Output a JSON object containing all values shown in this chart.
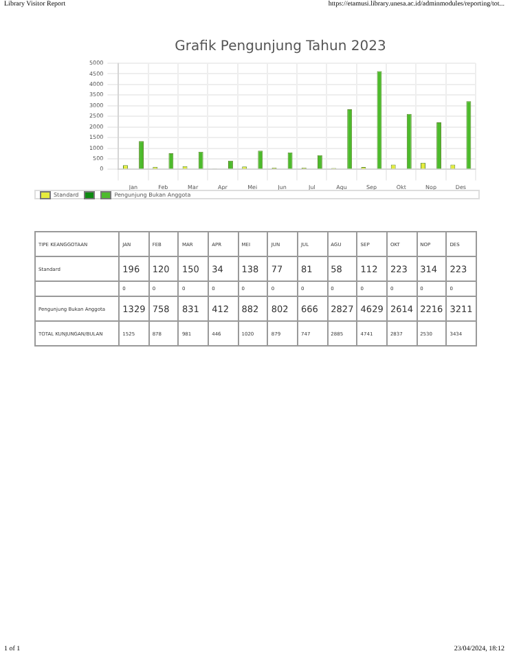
{
  "chart_data": {
    "type": "bar",
    "title": "Grafik Pengunjung Tahun 2023",
    "categories": [
      "Jan",
      "Feb",
      "Mar",
      "Apr",
      "Mei",
      "Jun",
      "Jul",
      "Agu",
      "Sep",
      "Okt",
      "Nop",
      "Des"
    ],
    "series": [
      {
        "name": "Standard",
        "color": "#e6ec3c",
        "values": [
          196,
          120,
          150,
          34,
          138,
          77,
          81,
          58,
          112,
          223,
          314,
          223
        ]
      },
      {
        "color": "#0e8a12",
        "values": [
          0,
          0,
          0,
          0,
          0,
          0,
          0,
          0,
          0,
          0,
          0,
          0
        ]
      },
      {
        "name": "Pengunjung Bukan Anggota",
        "color": "#4dbb2c",
        "values": [
          1329,
          758,
          831,
          412,
          882,
          802,
          666,
          2827,
          4629,
          2614,
          2216,
          3211
        ]
      }
    ],
    "ylim": [
      0,
      5000
    ],
    "yticks": [
      0,
      500,
      1000,
      1500,
      2000,
      2500,
      3000,
      3500,
      4000,
      4500,
      5000
    ],
    "grid": true,
    "legend": "bottom",
    "data_labels": true,
    "annotations": [
      "Library Visitor Report",
      "https://etamusi.library.unesa.ac.id/adminmodules/reporting/tot...",
      "TIPE KEANGGOTAAN",
      "JAN",
      "FEB",
      "MAR",
      "APR",
      "MEI",
      "JUN",
      "JUL",
      "AGU",
      "SEP",
      "OKT",
      "NOP",
      "DES",
      "TOTAL KUNJUNGAN/BULAN",
      "1525",
      "878",
      "981",
      "446",
      "1020",
      "879",
      "747",
      "2885",
      "4741",
      "2837",
      "2530",
      "3434",
      "1 of 1",
      "23/04/2024, 18:12"
    ]
  }
}
